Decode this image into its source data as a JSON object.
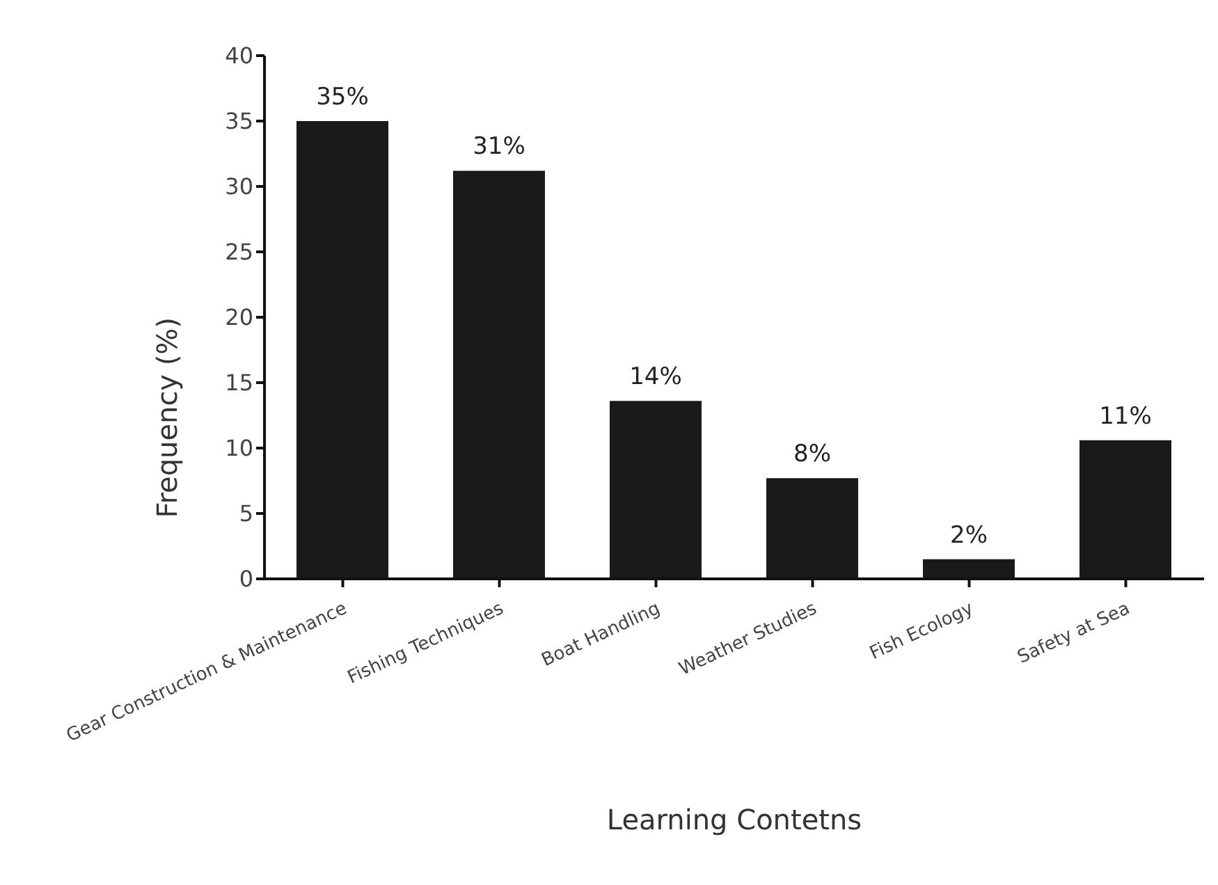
{
  "chart_data": {
    "type": "bar",
    "xlabel": "Learning Contetns",
    "ylabel": "Frequency (%)",
    "categories": [
      "Gear Construction & Maintenance",
      "Fishing Techniques",
      "Boat Handling",
      "Weather Studies",
      "Fish Ecology",
      "Safety at Sea"
    ],
    "values": [
      35,
      31.2,
      13.6,
      7.7,
      1.5,
      10.6
    ],
    "value_labels": [
      "35%",
      "31%",
      "14%",
      "8%",
      "2%",
      "11%"
    ],
    "color": "#1a1a1a",
    "ylim": [
      0,
      40
    ],
    "yticks": [
      0,
      5,
      10,
      15,
      20,
      25,
      30,
      35,
      40
    ],
    "grid": false,
    "legend": false
  }
}
